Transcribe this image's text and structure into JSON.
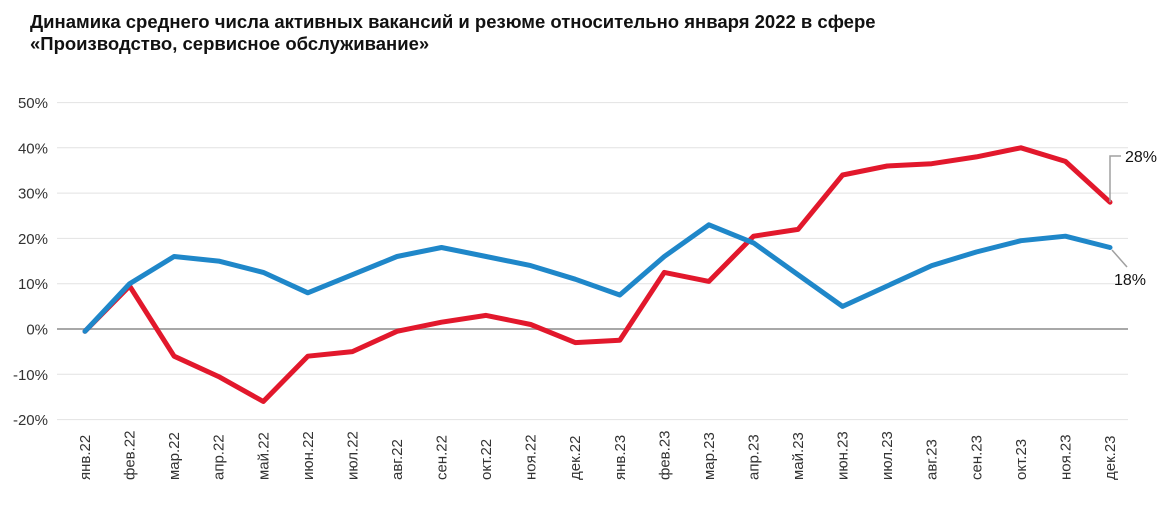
{
  "title": {
    "line1": "Динамика среднего числа активных вакансий и резюме относительно января 2022 в сфере",
    "line2": "«Производство, сервисное обслуживание»"
  },
  "chart_data": {
    "type": "line",
    "title": "Динамика среднего числа активных вакансий и резюме относительно января 2022 в сфере «Производство, сервисное обслуживание»",
    "categories": [
      "янв.22",
      "фев.22",
      "мар.22",
      "апр.22",
      "май.22",
      "июн.22",
      "июл.22",
      "авг.22",
      "сен.22",
      "окт.22",
      "ноя.22",
      "дек.22",
      "янв.23",
      "фев.23",
      "мар.23",
      "апр.23",
      "май.23",
      "июн.23",
      "июл.23",
      "авг.23",
      "сен.23",
      "окт.23",
      "ноя.23",
      "дек.23"
    ],
    "series": [
      {
        "name": "red-line",
        "color": "#e2182c",
        "values": [
          -0.5,
          9.5,
          -6,
          -10.5,
          -16,
          -6,
          -5,
          -0.5,
          1.5,
          3,
          1,
          -3,
          -2.5,
          12.5,
          10.5,
          20.5,
          22,
          34,
          36,
          36.5,
          38,
          40,
          37,
          28
        ],
        "end_label": "28%"
      },
      {
        "name": "blue-line",
        "color": "#1f87c9",
        "values": [
          -0.5,
          10,
          16,
          15,
          12.5,
          8,
          12,
          16,
          18,
          16,
          14,
          11,
          7.5,
          16,
          23,
          19,
          12,
          5,
          9.5,
          14,
          17,
          19.5,
          20.5,
          18
        ],
        "end_label": "18%"
      }
    ],
    "yticks": [
      "50%",
      "40%",
      "30%",
      "20%",
      "10%",
      "0%",
      "-10%",
      "-20%"
    ],
    "ytick_values": [
      50,
      40,
      30,
      20,
      10,
      0,
      -10,
      -20
    ],
    "ylim": [
      -20,
      50
    ],
    "unit": "%",
    "grid": true,
    "legend": "none",
    "gridline_color": "#e2e2e2",
    "zero_line_color": "#a8a8a8",
    "annotation_leader_color": "#a0a0a0"
  }
}
